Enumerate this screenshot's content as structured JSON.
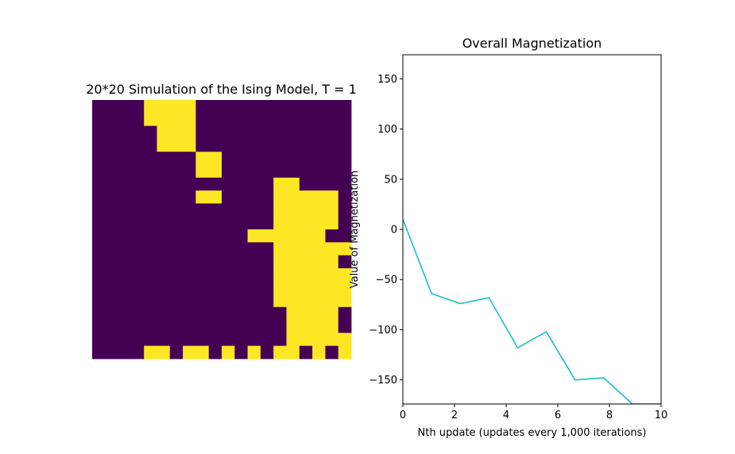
{
  "chart_data": [
    {
      "type": "heatmap",
      "title": "20*20 Simulation of the Ising Model, T = 1",
      "colors": {
        "spin_down": "#440154",
        "spin_up": "#fde725"
      },
      "grid": [
        "....####............",
        "....####............",
        ".....###............",
        ".....###............",
        "........##..........",
        "........##..........",
        "..............##....",
        "........##....#####.",
        "..............#####.",
        "..............#####.",
        "............######..",
        "..............######",
        "..............#####.",
        "..............######",
        "..............######",
        "..............######",
        "...............####.",
        "...............####.",
        "...............#####",
        "....##.##.#.#.##.#.#"
      ]
    },
    {
      "type": "line",
      "title": "Overall Magnetization",
      "xlabel": "Nth update (updates every 1,000 iterations)",
      "ylabel": "Value of Magnetization",
      "xlim": [
        0,
        10
      ],
      "ylim": [
        -174,
        174
      ],
      "xticks": [
        "0",
        "2",
        "4",
        "6",
        "8",
        "10"
      ],
      "yticks": [
        "150",
        "100",
        "50",
        "0",
        "−50",
        "−100",
        "−150"
      ],
      "xtick_values": [
        0,
        2,
        4,
        6,
        8,
        10
      ],
      "ytick_values": [
        150,
        100,
        50,
        0,
        -50,
        -100,
        -150
      ],
      "line_color": "#17bfbf",
      "x": [
        0,
        1.111,
        2.222,
        3.333,
        4.444,
        5.556,
        6.667,
        7.778,
        8.889,
        10
      ],
      "y": [
        10,
        -64,
        -74,
        -68,
        -118,
        -102,
        -150,
        -148,
        -174,
        -174
      ]
    }
  ]
}
